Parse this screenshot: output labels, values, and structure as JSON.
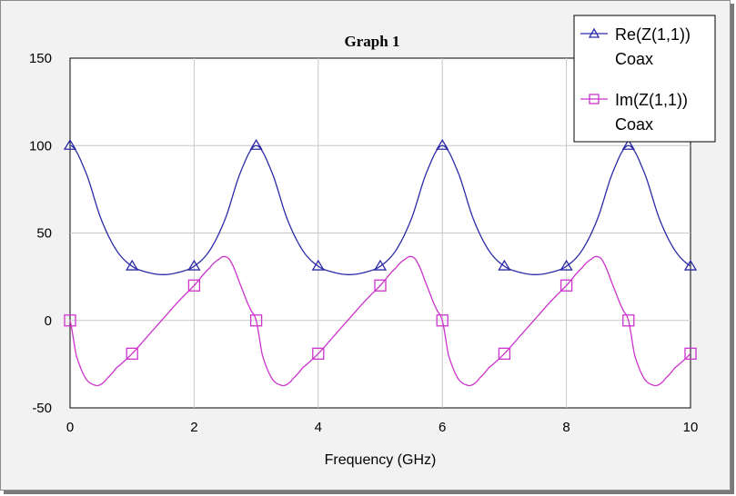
{
  "chart_data": {
    "type": "line",
    "title": "Graph 1",
    "xlabel": "Frequency (GHz)",
    "ylabel": "",
    "xlim": [
      0,
      10
    ],
    "ylim": [
      -50,
      150
    ],
    "xticks": [
      0,
      2,
      4,
      6,
      8,
      10
    ],
    "yticks": [
      -50,
      0,
      50,
      100,
      150
    ],
    "grid": true,
    "legend_position": "top-right",
    "series": [
      {
        "name": "Re(Z(1,1))",
        "source": "Coax",
        "marker": "triangle",
        "color": "#2b2ba8",
        "x": [
          0,
          0.25,
          0.5,
          0.75,
          1,
          1.25,
          1.5,
          1.75,
          2,
          2.25,
          2.5,
          2.75,
          3
        ],
        "y": [
          100,
          85,
          58,
          40,
          31,
          27.5,
          26.2,
          27.5,
          31,
          40,
          58,
          85,
          100
        ]
      },
      {
        "name": "Im(Z(1,1))",
        "source": "Coax",
        "marker": "square",
        "color": "#cc33cc",
        "x": [
          0,
          0.1,
          0.25,
          0.4,
          0.5,
          0.6,
          0.75,
          1,
          1.25,
          1.5,
          1.75,
          2,
          2.25,
          2.4,
          2.5,
          2.6,
          2.75,
          2.9,
          3
        ],
        "y": [
          0,
          -20,
          -33,
          -37,
          -36.5,
          -33,
          -27,
          -19,
          -9,
          1,
          11,
          20,
          30,
          35,
          36.5,
          33,
          20,
          7,
          0
        ]
      }
    ],
    "period": 3,
    "marker_x": [
      0,
      1,
      2,
      3,
      4,
      5,
      6,
      7,
      8,
      9,
      10
    ]
  }
}
